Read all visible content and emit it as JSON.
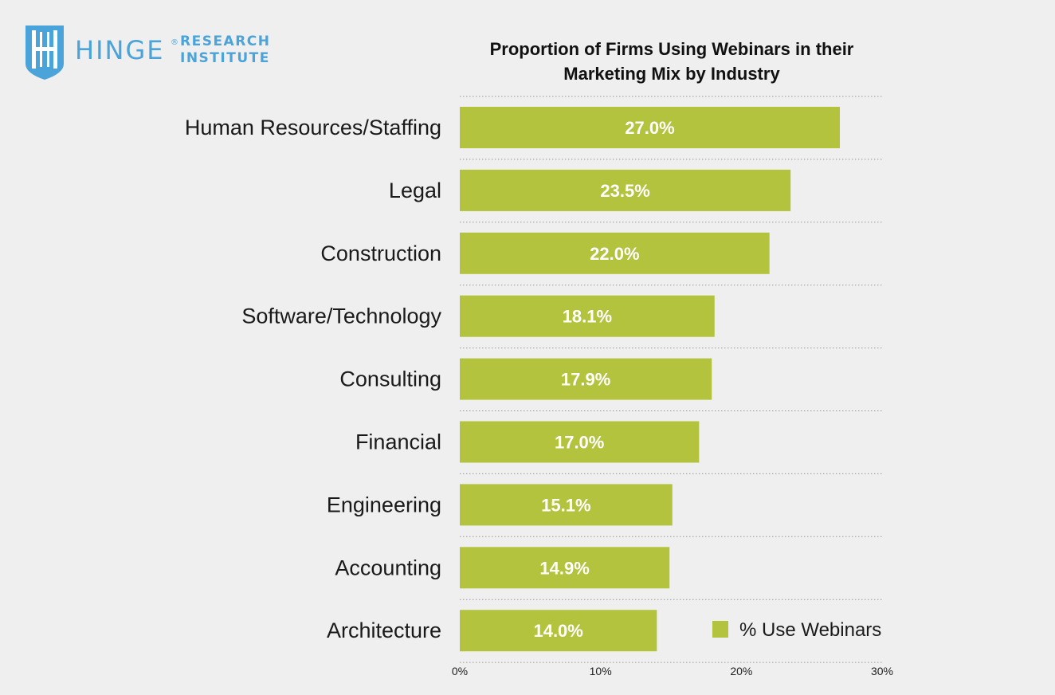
{
  "brand": {
    "name": "HINGE",
    "registered_mark": "®",
    "line1": "RESEARCH",
    "line2": "INSTITUTE",
    "icon": "hinge-shield-icon",
    "color": "#4aa3d9"
  },
  "chart_data": {
    "type": "bar",
    "orientation": "horizontal",
    "title_lines": [
      "Proportion of Firms Using Webinars in their",
      "Marketing Mix by Industry"
    ],
    "categories": [
      "Human Resources/Staffing",
      "Legal",
      "Construction",
      "Software/Technology",
      "Consulting",
      "Financial",
      "Engineering",
      "Accounting",
      "Architecture"
    ],
    "series": [
      {
        "name": "% Use Webinars",
        "values": [
          27.0,
          23.5,
          22.0,
          18.1,
          17.9,
          17.0,
          15.1,
          14.9,
          14.0
        ],
        "color": "#b4c33e"
      }
    ],
    "data_labels": [
      "27.0%",
      "23.5%",
      "22.0%",
      "18.1%",
      "17.9%",
      "17.0%",
      "15.1%",
      "14.9%",
      "14.0%"
    ],
    "xlim": [
      0,
      30
    ],
    "x_ticks": [
      0,
      10,
      20,
      30
    ],
    "x_tick_labels": [
      "0%",
      "10%",
      "20%",
      "30%"
    ],
    "xlabel": "",
    "ylabel": "",
    "grid": "horizontal-dotted",
    "legend": "bottom-right"
  }
}
